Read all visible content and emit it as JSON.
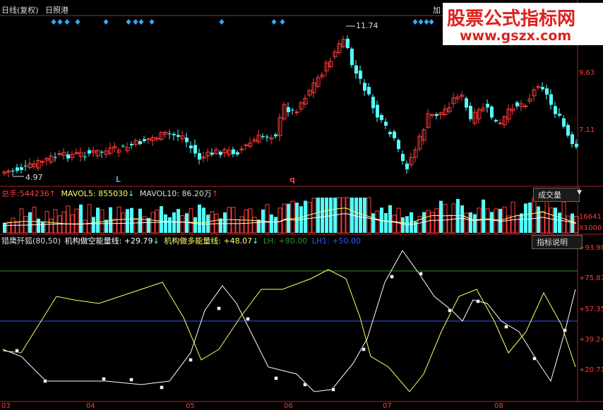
{
  "header": {
    "period_label": "日线(复权)",
    "stock_name": "日照港",
    "top_right_tab": "加"
  },
  "watermark": {
    "title": "股票公式指标网",
    "url": "www.gszx.com"
  },
  "price_panel": {
    "high_marker": "11.74",
    "low_marker": "4.97",
    "axis_labels": [
      "9.63",
      "7.11"
    ],
    "signal_letters": [
      "L",
      "q"
    ],
    "colors": {
      "up": "#ff3b3b",
      "down": "#54ffff",
      "diamond": "#33aaff"
    }
  },
  "volume_panel": {
    "total_label": "总手:",
    "total_value": "544236",
    "mavol5_label": "MAVOL5:",
    "mavol5_value": "855030",
    "mavol10_label": "MAVOL10:",
    "mavol10_value": "86.20万",
    "dropdown_label": "成交量",
    "axis_labels": [
      "16641",
      "X1000"
    ]
  },
  "indicator_panel": {
    "name": "猎鹰歼狐(80,50)",
    "short_label": "机构做空能量线:",
    "short_value": "+29.79",
    "long_label": "机构做多能量线:",
    "long_value": "+48.07",
    "lh_label": "LH:",
    "lh_value": "+80.00",
    "lh1_label": "LH1:",
    "lh1_value": "+50.00",
    "help_button": "指标说明",
    "axis_labels": [
      "+93.98",
      "+75.87",
      "+57.35",
      "+39.24",
      "+20.71"
    ],
    "colors": {
      "short": "#ffffff",
      "long": "#ffff66",
      "lh": "#2f8f2f",
      "lh1": "#3355ff"
    }
  },
  "x_axis": {
    "months": [
      "03",
      "04",
      "05",
      "06",
      "07",
      "08"
    ]
  }
}
